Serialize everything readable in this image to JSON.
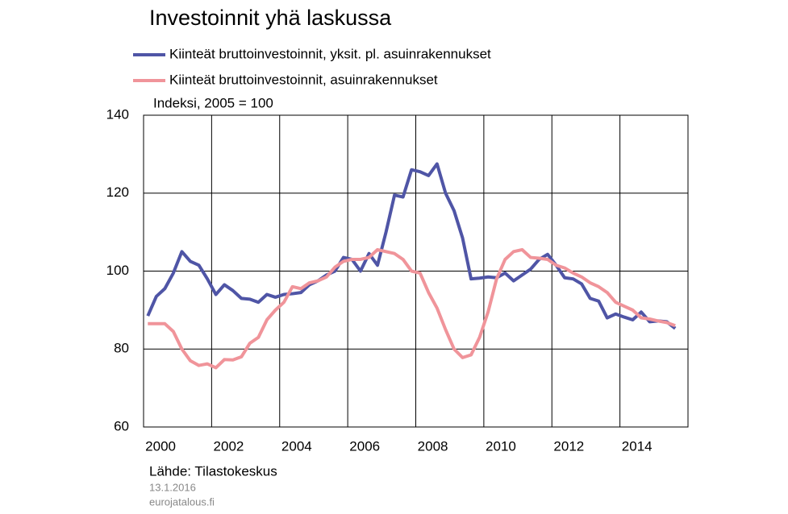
{
  "chart_data": {
    "type": "line",
    "title": "Investoinnit yhä laskussa",
    "ylabel": "Indeksi, 2005 = 100",
    "source": "Lähde: Tilastokeskus",
    "date": "13.1.2016",
    "website": "eurojatalous.fi",
    "x": [
      2000.125,
      2000.375,
      2000.625,
      2000.875,
      2001.125,
      2001.375,
      2001.625,
      2001.875,
      2002.125,
      2002.375,
      2002.625,
      2002.875,
      2003.125,
      2003.375,
      2003.625,
      2003.875,
      2004.125,
      2004.375,
      2004.625,
      2004.875,
      2005.125,
      2005.375,
      2005.625,
      2005.875,
      2006.125,
      2006.375,
      2006.625,
      2006.875,
      2007.125,
      2007.375,
      2007.625,
      2007.875,
      2008.125,
      2008.375,
      2008.625,
      2008.875,
      2009.125,
      2009.375,
      2009.625,
      2009.875,
      2010.125,
      2010.375,
      2010.625,
      2010.875,
      2011.125,
      2011.375,
      2011.625,
      2011.875,
      2012.125,
      2012.375,
      2012.625,
      2012.875,
      2013.125,
      2013.375,
      2013.625,
      2013.875,
      2014.125,
      2014.375,
      2014.625,
      2014.875,
      2015.125,
      2015.375,
      2015.625
    ],
    "series": [
      {
        "name": "Kiinteät bruttoinvestoinnit, yksit. pl. asuinrakennukset",
        "color": "#4f55a6",
        "values": [
          88.5,
          93.5,
          95.5,
          99.5,
          105,
          102.5,
          101.5,
          98,
          94,
          96.5,
          95,
          93,
          92.8,
          92,
          94,
          93.3,
          94,
          94.2,
          94.5,
          96.5,
          97.5,
          99,
          100,
          103.5,
          103,
          100,
          104.5,
          101.5,
          110,
          119.5,
          119,
          126,
          125.5,
          124.5,
          127.5,
          120,
          115.5,
          108.5,
          98,
          98.2,
          98.5,
          98.3,
          99.5,
          97.5,
          99,
          100.5,
          103,
          104.3,
          101.5,
          98.3,
          98,
          96.7,
          93,
          92.3,
          88,
          89,
          88.2,
          87.5,
          89.5,
          87,
          87.2,
          87,
          85.3
        ]
      },
      {
        "name": "Kiinteät bruttoinvestoinnit, asuinrakennukset",
        "color": "#f0949a",
        "values": [
          86.5,
          86.5,
          86.5,
          84.5,
          80,
          77,
          75.8,
          76.2,
          75.2,
          77.3,
          77.2,
          78,
          81.5,
          83,
          87.5,
          90,
          92,
          96,
          95.5,
          97,
          97.5,
          98.5,
          101,
          102.5,
          103,
          103,
          103.5,
          105.5,
          105,
          104.5,
          103,
          100,
          99.5,
          94.5,
          90.5,
          85,
          80,
          77.8,
          78.5,
          83,
          89.5,
          98,
          103,
          105,
          105.5,
          103.5,
          103.3,
          103,
          101.5,
          100.8,
          99.5,
          98.5,
          97,
          96,
          94.5,
          92,
          91,
          90,
          88,
          87.7,
          87.2,
          86.8,
          86
        ]
      }
    ],
    "xlim": [
      2000,
      2016
    ],
    "xticks": [
      2000,
      2002,
      2004,
      2006,
      2008,
      2010,
      2012,
      2014
    ],
    "ylim": [
      60,
      140
    ],
    "yticks": [
      60,
      80,
      100,
      120,
      140
    ],
    "grid": true
  }
}
